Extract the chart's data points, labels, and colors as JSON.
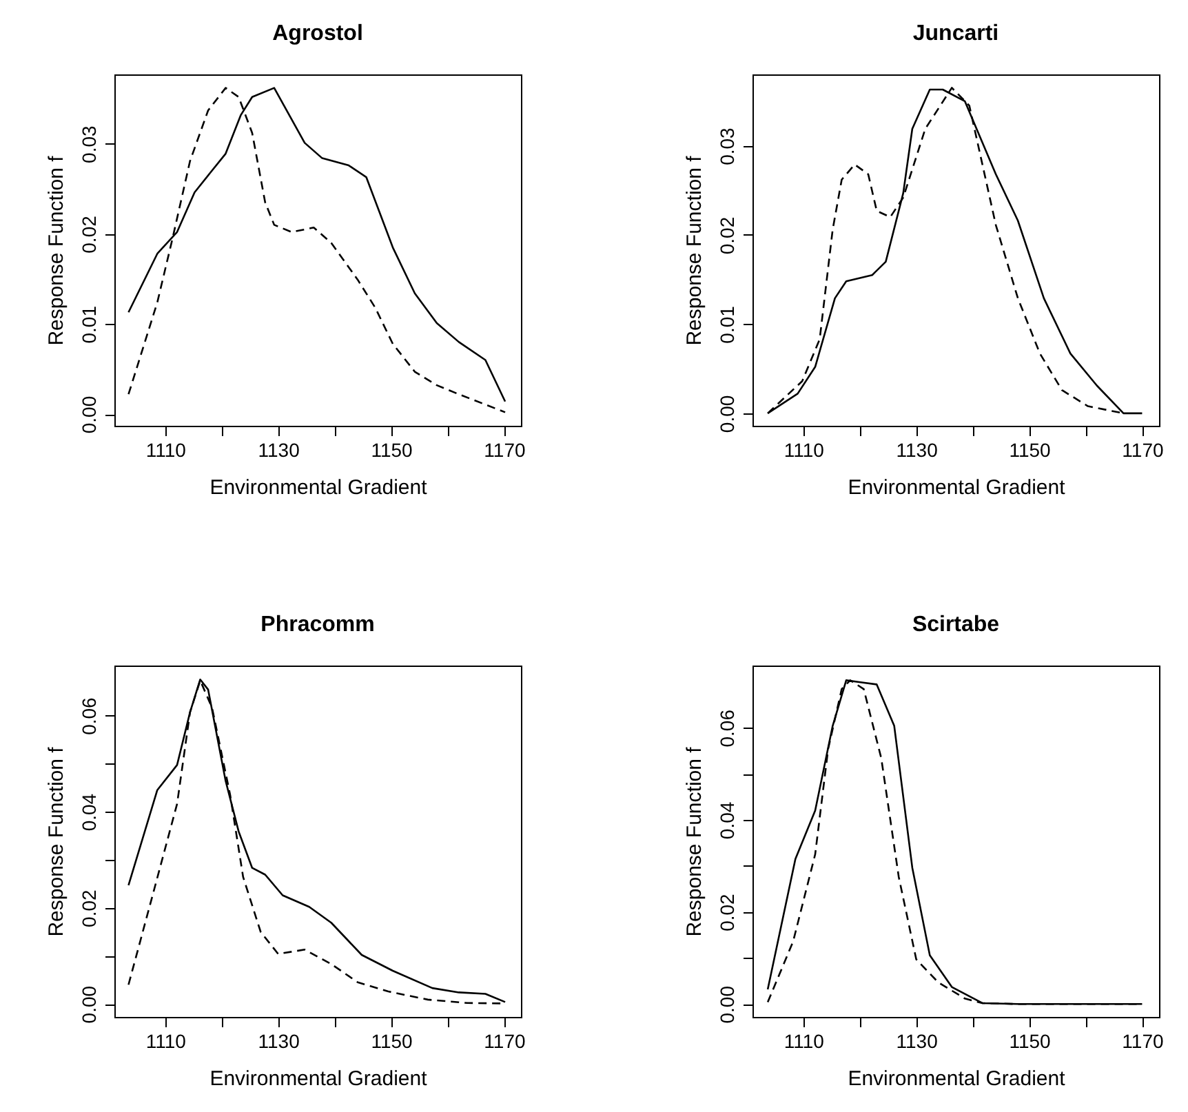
{
  "chart_data": [
    {
      "type": "line",
      "title": "Agrostol",
      "xlabel": "Environmental Gradient",
      "ylabel": "Response Function f",
      "xlim": [
        1101,
        1173
      ],
      "xticks": [
        1110,
        {
          "value": 1120,
          "label": null
        },
        1130,
        {
          "value": 1140,
          "label": null
        },
        1150,
        {
          "value": 1160,
          "label": null
        },
        1170
      ],
      "ylim": [
        -0.0013,
        0.0377
      ],
      "yticks": [
        {
          "value": 0,
          "label": "0.00"
        },
        {
          "value": 0.01,
          "label": "0.01"
        },
        {
          "value": 0.02,
          "label": "0.02"
        },
        {
          "value": 0.03,
          "label": "0.03"
        }
      ],
      "series": [
        {
          "color": "#000000",
          "line_style": "solid",
          "x": [
            1103.5,
            1108.6,
            1112.1,
            1115.2,
            1118,
            1120.7,
            1123.4,
            1125.4,
            1129.3,
            1134.7,
            1137.8,
            1142.5,
            1145.6,
            1150.3,
            1154.2,
            1158.1,
            1162,
            1166.7,
            1170.2
          ],
          "values": [
            0.0113,
            0.0178,
            0.0202,
            0.0246,
            0.0268,
            0.0289,
            0.0332,
            0.0352,
            0.0362,
            0.0301,
            0.0284,
            0.0276,
            0.0263,
            0.0185,
            0.0134,
            0.0101,
            0.008,
            0.006,
            0.0014
          ]
        },
        {
          "color": "#000000",
          "line_style": "dashed",
          "x": [
            1103.5,
            1108.6,
            1111.3,
            1114.4,
            1117.6,
            1120.7,
            1123,
            1125.4,
            1127.7,
            1129.3,
            1132.4,
            1136.3,
            1139.4,
            1144.1,
            1147.2,
            1150.3,
            1154.2,
            1158.1,
            1162,
            1170.2
          ],
          "values": [
            0.0022,
            0.0124,
            0.0195,
            0.0281,
            0.0337,
            0.0362,
            0.0352,
            0.0312,
            0.0235,
            0.021,
            0.0202,
            0.0207,
            0.019,
            0.0149,
            0.0118,
            0.0078,
            0.0047,
            0.0032,
            0.0022,
            0.0002
          ]
        }
      ]
    },
    {
      "type": "line",
      "title": "Juncarti",
      "xlabel": "Environmental Gradient",
      "ylabel": "Response Function f",
      "xlim": [
        1101,
        1173
      ],
      "xticks": [
        1110,
        {
          "value": 1120,
          "label": null
        },
        1130,
        {
          "value": 1140,
          "label": null
        },
        1150,
        {
          "value": 1160,
          "label": null
        },
        1170
      ],
      "ylim": [
        -0.0014,
        0.038
      ],
      "yticks": [
        {
          "value": 0,
          "label": "0.00"
        },
        {
          "value": 0.01,
          "label": "0.01"
        },
        {
          "value": 0.02,
          "label": "0.02"
        },
        {
          "value": 0.03,
          "label": "0.03"
        }
      ],
      "series": [
        {
          "color": "#000000",
          "line_style": "solid",
          "x": [
            1103.7,
            1109,
            1112.1,
            1115.6,
            1117.6,
            1122.2,
            1124.6,
            1127.7,
            1129.3,
            1132.4,
            1134.7,
            1138.6,
            1144.1,
            1148,
            1152.6,
            1157.3,
            1162,
            1166.7,
            1170
          ],
          "values": [
            0,
            0.0022,
            0.0052,
            0.0129,
            0.0148,
            0.0155,
            0.017,
            0.0247,
            0.0319,
            0.0363,
            0.0363,
            0.035,
            0.0268,
            0.0216,
            0.0129,
            0.0067,
            0.0031,
            0,
            0
          ]
        },
        {
          "color": "#000000",
          "line_style": "dashed",
          "x": [
            1103.7,
            1109.8,
            1112.9,
            1115.2,
            1116.8,
            1119.1,
            1121.5,
            1123,
            1125.4,
            1127.7,
            1131.6,
            1136.3,
            1139.4,
            1144.1,
            1148,
            1151.9,
            1155.8,
            1160.4,
            1166.7
          ],
          "values": [
            0,
            0.0036,
            0.0083,
            0.0206,
            0.0262,
            0.0279,
            0.0268,
            0.0227,
            0.022,
            0.0242,
            0.0319,
            0.0365,
            0.0345,
            0.0211,
            0.0129,
            0.0067,
            0.0026,
            0.0008,
            0
          ]
        }
      ]
    },
    {
      "type": "line",
      "title": "Phracomm",
      "xlabel": "Environmental Gradient",
      "ylabel": "Response Function f",
      "xlim": [
        1101,
        1173
      ],
      "xticks": [
        1110,
        {
          "value": 1120,
          "label": null
        },
        1130,
        {
          "value": 1140,
          "label": null
        },
        1150,
        {
          "value": 1160,
          "label": null
        },
        1170
      ],
      "ylim": [
        -0.0027,
        0.0704
      ],
      "yticks": [
        {
          "value": 0,
          "label": "0.00"
        },
        {
          "value": 0.01,
          "label": null
        },
        {
          "value": 0.02,
          "label": "0.02"
        },
        {
          "value": 0.03,
          "label": null
        },
        {
          "value": 0.04,
          "label": "0.04"
        },
        {
          "value": 0.05,
          "label": null
        },
        {
          "value": 0.06,
          "label": "0.06"
        }
      ],
      "series": [
        {
          "color": "#000000",
          "line_style": "solid",
          "x": [
            1103.5,
            1108.6,
            1112.1,
            1114.4,
            1116.2,
            1117.6,
            1120.7,
            1123,
            1125.4,
            1127.7,
            1130.8,
            1135.5,
            1139.4,
            1144.8,
            1150.3,
            1157.3,
            1162,
            1166.7,
            1170.2
          ],
          "values": [
            0.0247,
            0.0445,
            0.0497,
            0.0607,
            0.0675,
            0.0654,
            0.0464,
            0.0359,
            0.0283,
            0.0269,
            0.0226,
            0.0202,
            0.0169,
            0.0102,
            0.0069,
            0.0033,
            0.0024,
            0.0021,
            0.0004
          ]
        },
        {
          "color": "#000000",
          "line_style": "dashed",
          "x": [
            1103.5,
            1108.2,
            1112.1,
            1114.4,
            1116.2,
            1118.3,
            1121.5,
            1123.8,
            1126.9,
            1130,
            1134.7,
            1139.4,
            1144.1,
            1149.5,
            1156.5,
            1163.5,
            1170.2
          ],
          "values": [
            0.004,
            0.0245,
            0.0416,
            0.0607,
            0.0673,
            0.0616,
            0.0435,
            0.0264,
            0.015,
            0.0104,
            0.0113,
            0.0083,
            0.0045,
            0.0026,
            0.0009,
            0.0002,
            0.0001
          ]
        }
      ]
    },
    {
      "type": "line",
      "title": "Scirtabe",
      "xlabel": "Environmental Gradient",
      "ylabel": "Response Function f",
      "xlim": [
        1101,
        1173
      ],
      "xticks": [
        1110,
        {
          "value": 1120,
          "label": null
        },
        1130,
        {
          "value": 1140,
          "label": null
        },
        1150,
        {
          "value": 1160,
          "label": null
        },
        1170
      ],
      "ylim": [
        -0.0028,
        0.0735
      ],
      "yticks": [
        {
          "value": 0,
          "label": "0.00"
        },
        {
          "value": 0.01,
          "label": null
        },
        {
          "value": 0.02,
          "label": "0.02"
        },
        {
          "value": 0.03,
          "label": null
        },
        {
          "value": 0.04,
          "label": "0.04"
        },
        {
          "value": 0.05,
          "label": null
        },
        {
          "value": 0.06,
          "label": "0.06"
        }
      ],
      "series": [
        {
          "color": "#000000",
          "line_style": "solid",
          "x": [
            1103.7,
            1108.6,
            1112.1,
            1115.2,
            1117.6,
            1119.9,
            1123,
            1126.1,
            1129.3,
            1132.4,
            1136.3,
            1141.7,
            1148,
            1170
          ],
          "values": [
            0.0032,
            0.0315,
            0.042,
            0.0604,
            0.0703,
            0.0699,
            0.0694,
            0.0604,
            0.0296,
            0.0106,
            0.0037,
            0.0002,
            0,
            0
          ]
        },
        {
          "color": "#000000",
          "line_style": "dashed",
          "x": [
            1103.7,
            1108.2,
            1112.1,
            1114.4,
            1116.8,
            1118.3,
            1120.7,
            1123.8,
            1126.9,
            1130,
            1133.9,
            1138.6,
            1141.7,
            1148,
            1170
          ],
          "values": [
            0.0004,
            0.0136,
            0.0325,
            0.0554,
            0.0684,
            0.0703,
            0.0684,
            0.0534,
            0.0276,
            0.0097,
            0.0047,
            0.0012,
            0.0002,
            0,
            0
          ]
        }
      ]
    }
  ]
}
